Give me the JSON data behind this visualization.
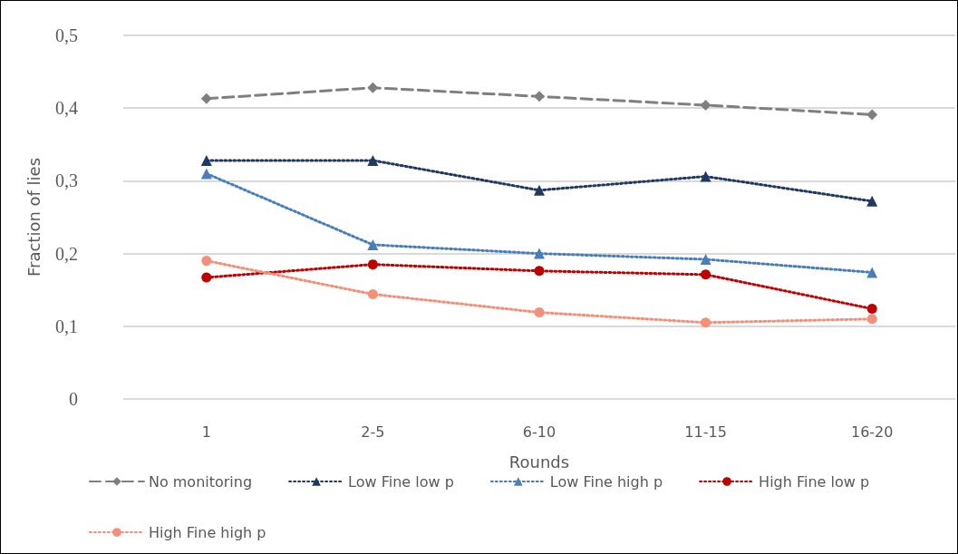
{
  "chart_data": {
    "type": "line",
    "xlabel": "Rounds",
    "ylabel": "Fraction of lies",
    "categories": [
      "1",
      "2-5",
      "6-10",
      "11-15",
      "16-20"
    ],
    "ylim": [
      0,
      0.5
    ],
    "yticks": [
      0,
      {
        "value": 0.1,
        "label": "0,1"
      },
      {
        "value": 0.2,
        "label": "0,2"
      },
      {
        "value": 0.3,
        "label": "0,3"
      },
      {
        "value": 0.4,
        "label": "0,4"
      },
      {
        "value": 0.5,
        "label": "0,5"
      }
    ],
    "grid": "y",
    "legend": "bottom",
    "series": [
      {
        "name": "No monitoring",
        "color": "#7f7f7f",
        "marker": "diamond",
        "line_style": "dashed",
        "values": [
          0.413,
          0.428,
          0.416,
          0.404,
          0.391
        ]
      },
      {
        "name": "Low Fine low p",
        "color": "#1f3864",
        "marker": "triangle",
        "line_style": "dotted",
        "values": [
          0.328,
          0.328,
          0.287,
          0.306,
          0.272
        ]
      },
      {
        "name": "Low Fine high p",
        "color": "#4a7ebb",
        "marker": "triangle",
        "line_style": "dotted",
        "values": [
          0.31,
          0.212,
          0.2,
          0.192,
          0.174
        ]
      },
      {
        "name": "High Fine low p",
        "color": "#c00000",
        "marker": "circle",
        "line_style": "dotted",
        "values": [
          0.167,
          0.185,
          0.176,
          0.171,
          0.124
        ]
      },
      {
        "name": "High Fine high p",
        "color": "#f4907a",
        "marker": "circle",
        "line_style": "dotted",
        "values": [
          0.19,
          0.144,
          0.119,
          0.105,
          0.11
        ]
      }
    ]
  }
}
